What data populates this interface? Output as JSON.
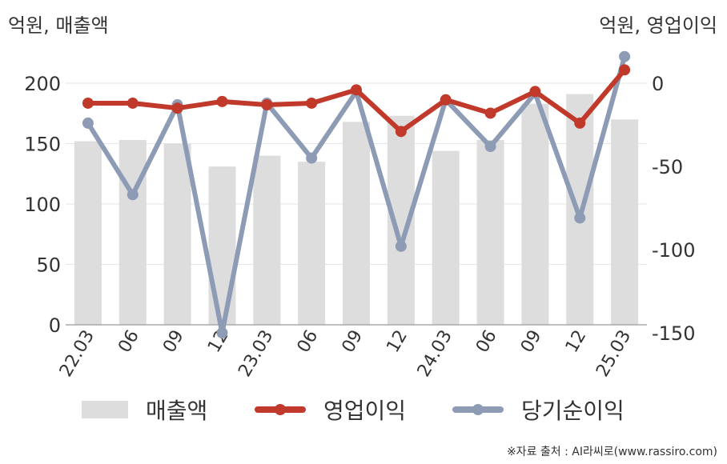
{
  "units": {
    "left": "억원, 매출액",
    "right": "억원, 영업이익"
  },
  "source": "※자료 출처 : AI라씨로(www.rassiro.com)",
  "legend": {
    "revenue": "매출액",
    "operating_profit": "영업이익",
    "net_profit": "당기순이익"
  },
  "colors": {
    "bar": "#dddddd",
    "operating_profit": "#c0392b",
    "net_profit": "#8d9bb5",
    "axis": "#aaaaaa",
    "grid": "#e6e6e6"
  },
  "chart_data": {
    "type": "bar",
    "categories": [
      "22.03",
      "06",
      "09",
      "12",
      "23.03",
      "06",
      "09",
      "12",
      "24.03",
      "06",
      "09",
      "12",
      "25.03"
    ],
    "series": [
      {
        "name": "매출액",
        "type": "bar",
        "axis": "left",
        "values": [
          152,
          153,
          150,
          131,
          140,
          135,
          168,
          173,
          144,
          153,
          183,
          191,
          170
        ]
      },
      {
        "name": "영업이익",
        "type": "line",
        "axis": "right",
        "values": [
          -12,
          -12,
          -15,
          -11,
          -13,
          -12,
          -4,
          -29,
          -10,
          -18,
          -5,
          -24,
          8
        ]
      },
      {
        "name": "당기순이익",
        "type": "line",
        "axis": "right",
        "values": [
          -24,
          -67,
          -13,
          -150,
          -12,
          -45,
          -5,
          -98,
          -10,
          -38,
          -6,
          -81,
          16
        ]
      }
    ],
    "y_left": {
      "ylim": [
        0,
        200
      ],
      "ticks": [
        0,
        50,
        100,
        150,
        200
      ]
    },
    "y_right": {
      "ylim": [
        -175,
        0
      ],
      "ticks": [
        0,
        -50,
        -100,
        -150
      ]
    },
    "grid": true,
    "legend_position": "bottom"
  }
}
